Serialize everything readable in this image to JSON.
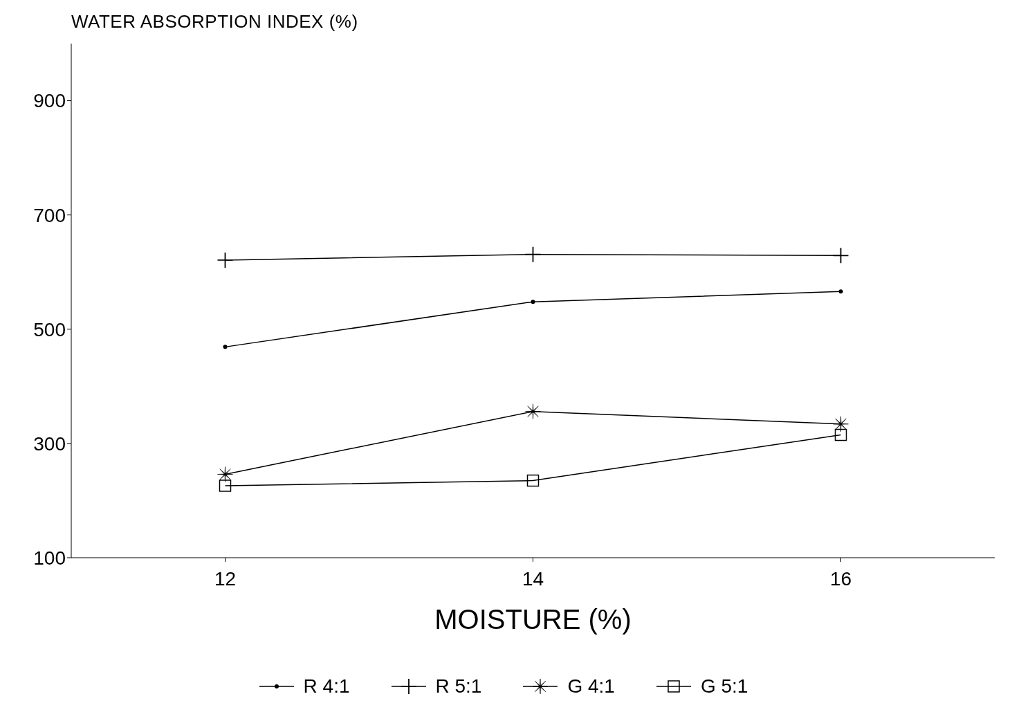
{
  "chart_data": {
    "type": "line",
    "ylabel": "WATER ABSORPTION INDEX (%)",
    "xlabel": "MOISTURE (%)",
    "x": [
      12,
      14,
      16
    ],
    "series": [
      {
        "name": "R 4:1",
        "color": "#000000",
        "marker": "circle",
        "values": [
          469,
          548,
          566
        ]
      },
      {
        "name": "R 5:1",
        "color": "#000000",
        "marker": "cross",
        "values": [
          621,
          631,
          629
        ]
      },
      {
        "name": "G 4:1",
        "color": "#000000",
        "marker": "star",
        "values": [
          246,
          356,
          334
        ]
      },
      {
        "name": "G 5:1",
        "color": "#000000",
        "marker": "square",
        "values": [
          226,
          235,
          315
        ]
      }
    ],
    "xlim": [
      11,
      17
    ],
    "xticks": [
      12,
      14,
      16
    ],
    "ylim": [
      100,
      1000
    ],
    "yticks": [
      100,
      300,
      500,
      700,
      900
    ],
    "grid": false,
    "legend": "bottom",
    "line_style": "solid"
  }
}
